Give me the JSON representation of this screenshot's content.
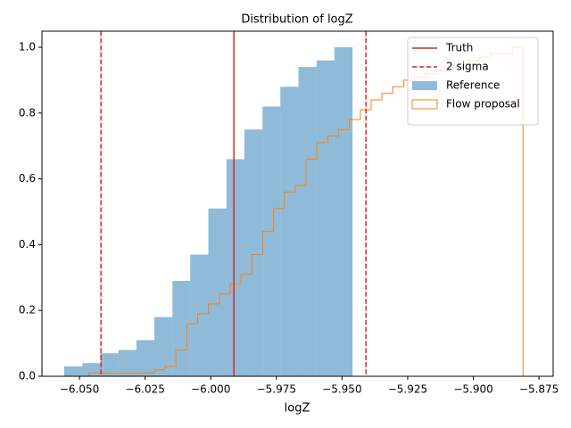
{
  "chart_data": {
    "type": "histogram",
    "title": "Distribution of logZ",
    "xlabel": "logZ",
    "xlim": [
      -6.0643,
      -5.8696
    ],
    "ylim": [
      0,
      1.0488
    ],
    "xticks": [
      {
        "value": -6.05,
        "label": "−6.050"
      },
      {
        "value": -6.025,
        "label": "−6.025"
      },
      {
        "value": -6.0,
        "label": "−6.000"
      },
      {
        "value": -5.975,
        "label": "−5.975"
      },
      {
        "value": -5.95,
        "label": "−5.950"
      },
      {
        "value": -5.925,
        "label": "−5.925"
      },
      {
        "value": -5.9,
        "label": "−5.900"
      },
      {
        "value": -5.875,
        "label": "−5.875"
      }
    ],
    "yticks": [
      {
        "value": 0,
        "label": "0.0"
      },
      0.2,
      0.4,
      0.6,
      0.8,
      {
        "value": 1,
        "label": "1.0"
      }
    ],
    "legend": "upper right",
    "vlines": [
      {
        "name": "Truth",
        "color": "#d62728",
        "style": "solid",
        "x": [
          -5.9912
        ]
      },
      {
        "name": "2 sigma",
        "color": "#d62728",
        "style": "dashed",
        "x": [
          -6.0418,
          -5.9409
        ]
      }
    ],
    "series": [
      {
        "name": "Reference",
        "kind": "bar",
        "color": "#1f77b4",
        "opacity": 0.5,
        "bins": [
          -6.0558,
          -6.0489,
          -6.0421,
          -6.0352,
          -6.0283,
          -6.0215,
          -6.0146,
          -6.0078,
          -6.0009,
          -5.994,
          -5.9872,
          -5.9803,
          -5.9735,
          -5.9666,
          -5.9597,
          -5.9529,
          -5.946
        ],
        "values": [
          0.03,
          0.04,
          0.07,
          0.08,
          0.11,
          0.18,
          0.29,
          0.37,
          0.51,
          0.66,
          0.75,
          0.82,
          0.88,
          0.94,
          0.96,
          1.0
        ]
      },
      {
        "name": "Flow proposal",
        "kind": "step",
        "color": "#ff7f0e",
        "bins": [
          -6.0463,
          -6.0422,
          -6.038,
          -6.0339,
          -6.0298,
          -6.0256,
          -6.0215,
          -6.0174,
          -6.0133,
          -6.0091,
          -6.005,
          -6.0009,
          -5.9967,
          -5.9926,
          -5.9885,
          -5.9843,
          -5.9802,
          -5.9761,
          -5.972,
          -5.9678,
          -5.9637,
          -5.9596,
          -5.9554,
          -5.9513,
          -5.9472,
          -5.943,
          -5.9389,
          -5.9348,
          -5.9307,
          -5.9265,
          -5.9224,
          -5.9183,
          -5.9141,
          -5.91,
          -5.9059,
          -5.9017,
          -5.8976,
          -5.8935,
          -5.8894,
          -5.8852,
          -5.8811
        ],
        "values": [
          0.01,
          0.01,
          0.01,
          0.01,
          0.01,
          0.01,
          0.02,
          0.03,
          0.08,
          0.16,
          0.19,
          0.22,
          0.25,
          0.28,
          0.31,
          0.37,
          0.44,
          0.51,
          0.56,
          0.58,
          0.66,
          0.71,
          0.73,
          0.75,
          0.78,
          0.81,
          0.84,
          0.86,
          0.88,
          0.9,
          0.91,
          0.92,
          0.93,
          0.94,
          0.95,
          0.96,
          0.97,
          0.98,
          0.98,
          1.0
        ]
      }
    ]
  }
}
